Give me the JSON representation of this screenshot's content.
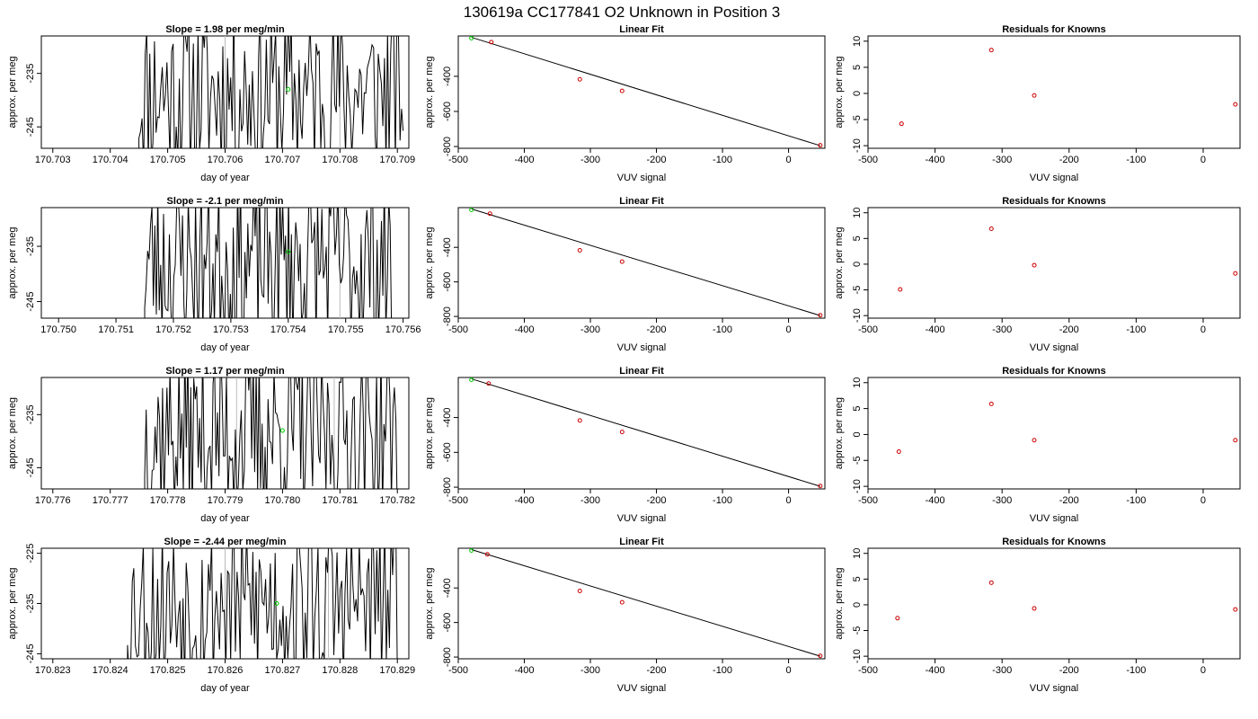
{
  "page_title": "130619a     CC177841   O2 Unknown in Position  3",
  "colors": {
    "series": "#000000",
    "known_point": "#cc0000",
    "reference_point": "#00cc00",
    "marker_line": "#bbbbbb"
  },
  "chart_data": [
    {
      "type": "line",
      "role": "time",
      "title": "Slope =  1.98  per meg/min",
      "xlabel": "day of year",
      "ylabel": "approx. per meg",
      "xlim": [
        170.7028,
        170.7092
      ],
      "ylim": [
        -249,
        -228
      ],
      "xticks": [
        "170.703",
        "170.704",
        "170.705",
        "170.706",
        "170.707",
        "170.708",
        "170.709"
      ],
      "yticks": [
        "-235",
        "-245"
      ],
      "series_start": 170.7045,
      "series_end": 170.7091,
      "series_seed": 11,
      "marker_x": [
        170.706,
        170.708
      ],
      "reference_point": {
        "x": 170.7071,
        "y": -238
      }
    },
    {
      "type": "line",
      "role": "fit",
      "title": "Linear Fit",
      "xlabel": "VUV signal",
      "ylabel": "approx. per meg",
      "xlim": [
        -500,
        55
      ],
      "ylim": [
        -810,
        -170
      ],
      "xticks": [
        "-500",
        "-400",
        "-300",
        "-200",
        "-100",
        "0"
      ],
      "yticks": [
        "-400",
        "-600",
        "-800"
      ],
      "known_points": [
        {
          "x": -450,
          "y": -205
        },
        {
          "x": -316,
          "y": -417
        },
        {
          "x": -252,
          "y": -483
        },
        {
          "x": 48,
          "y": -793
        }
      ],
      "reference_point": {
        "x": -480,
        "y": -183
      },
      "fit_line": [
        {
          "x": -480,
          "y": -178
        },
        {
          "x": 48,
          "y": -795
        }
      ]
    },
    {
      "type": "scatter",
      "role": "residual",
      "title": "Residuals for Knowns",
      "xlabel": "VUV signal",
      "ylabel": "approx. per meg",
      "xlim": [
        -500,
        55
      ],
      "ylim": [
        -10.5,
        11
      ],
      "xticks": [
        "-500",
        "-400",
        "-300",
        "-200",
        "-100",
        "0"
      ],
      "yticks": [
        "10",
        "5",
        "0",
        "-5",
        "-10"
      ],
      "known_points": [
        {
          "x": -450,
          "y": -5.8
        },
        {
          "x": -316,
          "y": 8.3
        },
        {
          "x": -252,
          "y": -0.4
        },
        {
          "x": 48,
          "y": -2.1
        }
      ]
    },
    {
      "type": "line",
      "role": "time",
      "title": "Slope =  -2.1  per meg/min",
      "xlabel": "day of year",
      "ylabel": "approx. per meg",
      "xlim": [
        170.7497,
        170.7561
      ],
      "ylim": [
        -248,
        -228
      ],
      "xticks": [
        "170.750",
        "170.751",
        "170.752",
        "170.753",
        "170.754",
        "170.755",
        "170.756"
      ],
      "yticks": [
        "-235",
        "-245"
      ],
      "series_start": 170.7515,
      "series_end": 170.7558,
      "series_seed": 23,
      "marker_x": [
        170.7531,
        170.7549
      ],
      "reference_point": {
        "x": 170.754,
        "y": -236
      }
    },
    {
      "type": "line",
      "role": "fit",
      "title": "Linear Fit",
      "xlabel": "VUV signal",
      "ylabel": "approx. per meg",
      "xlim": [
        -500,
        55
      ],
      "ylim": [
        -810,
        -170
      ],
      "xticks": [
        "-500",
        "-400",
        "-300",
        "-200",
        "-100",
        "0"
      ],
      "yticks": [
        "-400",
        "-600",
        "-800"
      ],
      "known_points": [
        {
          "x": -452,
          "y": -205
        },
        {
          "x": -316,
          "y": -417
        },
        {
          "x": -252,
          "y": -483
        },
        {
          "x": 48,
          "y": -793
        }
      ],
      "reference_point": {
        "x": -480,
        "y": -183
      },
      "fit_line": [
        {
          "x": -480,
          "y": -178
        },
        {
          "x": 48,
          "y": -795
        }
      ]
    },
    {
      "type": "scatter",
      "role": "residual",
      "title": "Residuals for Knowns",
      "xlabel": "VUV signal",
      "ylabel": "approx. per meg",
      "xlim": [
        -500,
        55
      ],
      "ylim": [
        -10.5,
        11
      ],
      "xticks": [
        "-500",
        "-400",
        "-300",
        "-200",
        "-100",
        "0"
      ],
      "yticks": [
        "10",
        "5",
        "0",
        "-5",
        "-10"
      ],
      "known_points": [
        {
          "x": -452,
          "y": -4.9
        },
        {
          "x": -316,
          "y": 6.9
        },
        {
          "x": -252,
          "y": -0.2
        },
        {
          "x": 48,
          "y": -1.8
        }
      ]
    },
    {
      "type": "line",
      "role": "time",
      "title": "Slope =  1.17  per meg/min",
      "xlabel": "day of year",
      "ylabel": "approx. per meg",
      "xlim": [
        170.7758,
        170.7822
      ],
      "ylim": [
        -249,
        -228
      ],
      "xticks": [
        "170.776",
        "170.777",
        "170.778",
        "170.779",
        "170.780",
        "170.781",
        "170.782"
      ],
      "yticks": [
        "-235",
        "-245"
      ],
      "series_start": 170.7776,
      "series_end": 170.782,
      "series_seed": 37,
      "marker_x": [
        170.7792,
        170.7809
      ],
      "reference_point": {
        "x": 170.78,
        "y": -238
      }
    },
    {
      "type": "line",
      "role": "fit",
      "title": "Linear Fit",
      "xlabel": "VUV signal",
      "ylabel": "approx. per meg",
      "xlim": [
        -500,
        55
      ],
      "ylim": [
        -810,
        -170
      ],
      "xticks": [
        "-500",
        "-400",
        "-300",
        "-200",
        "-100",
        "0"
      ],
      "yticks": [
        "-400",
        "-600",
        "-800"
      ],
      "known_points": [
        {
          "x": -454,
          "y": -205
        },
        {
          "x": -316,
          "y": -417
        },
        {
          "x": -252,
          "y": -483
        },
        {
          "x": 48,
          "y": -793
        }
      ],
      "reference_point": {
        "x": -480,
        "y": -183
      },
      "fit_line": [
        {
          "x": -480,
          "y": -178
        },
        {
          "x": 48,
          "y": -795
        }
      ]
    },
    {
      "type": "scatter",
      "role": "residual",
      "title": "Residuals for Knowns",
      "xlabel": "VUV signal",
      "ylabel": "approx. per meg",
      "xlim": [
        -500,
        55
      ],
      "ylim": [
        -10.5,
        11
      ],
      "xticks": [
        "-500",
        "-400",
        "-300",
        "-200",
        "-100",
        "0"
      ],
      "yticks": [
        "10",
        "5",
        "0",
        "-5",
        "-10"
      ],
      "known_points": [
        {
          "x": -454,
          "y": -3.3
        },
        {
          "x": -316,
          "y": 5.9
        },
        {
          "x": -252,
          "y": -1.1
        },
        {
          "x": 48,
          "y": -1.1
        }
      ]
    },
    {
      "type": "line",
      "role": "time",
      "title": "Slope =  -2.44  per meg/min",
      "xlabel": "day of year",
      "ylabel": "approx. per meg",
      "xlim": [
        170.8228,
        170.8292
      ],
      "ylim": [
        -246,
        -224
      ],
      "xticks": [
        "170.823",
        "170.824",
        "170.825",
        "170.826",
        "170.827",
        "170.828",
        "170.829"
      ],
      "yticks": [
        "-225",
        "-235",
        "-245"
      ],
      "series_start": 170.8243,
      "series_end": 170.829,
      "series_seed": 53,
      "marker_x": [
        170.826,
        170.8278
      ],
      "reference_point": {
        "x": 170.8269,
        "y": -235
      }
    },
    {
      "type": "line",
      "role": "fit",
      "title": "Linear Fit",
      "xlabel": "VUV signal",
      "ylabel": "approx. per meg",
      "xlim": [
        -500,
        55
      ],
      "ylim": [
        -810,
        -170
      ],
      "xticks": [
        "-500",
        "-400",
        "-300",
        "-200",
        "-100",
        "0"
      ],
      "yticks": [
        "-400",
        "-600",
        "-800"
      ],
      "known_points": [
        {
          "x": -456,
          "y": -205
        },
        {
          "x": -316,
          "y": -417
        },
        {
          "x": -252,
          "y": -483
        },
        {
          "x": 48,
          "y": -793
        }
      ],
      "reference_point": {
        "x": -480,
        "y": -183
      },
      "fit_line": [
        {
          "x": -480,
          "y": -178
        },
        {
          "x": 48,
          "y": -795
        }
      ]
    },
    {
      "type": "scatter",
      "role": "residual",
      "title": "Residuals for Knowns",
      "xlabel": "VUV signal",
      "ylabel": "approx. per meg",
      "xlim": [
        -500,
        55
      ],
      "ylim": [
        -10.5,
        11
      ],
      "xticks": [
        "-500",
        "-400",
        "-300",
        "-200",
        "-100",
        "0"
      ],
      "yticks": [
        "10",
        "5",
        "0",
        "-5",
        "-10"
      ],
      "known_points": [
        {
          "x": -456,
          "y": -2.6
        },
        {
          "x": -316,
          "y": 4.3
        },
        {
          "x": -252,
          "y": -0.7
        },
        {
          "x": 48,
          "y": -0.9
        }
      ]
    }
  ]
}
